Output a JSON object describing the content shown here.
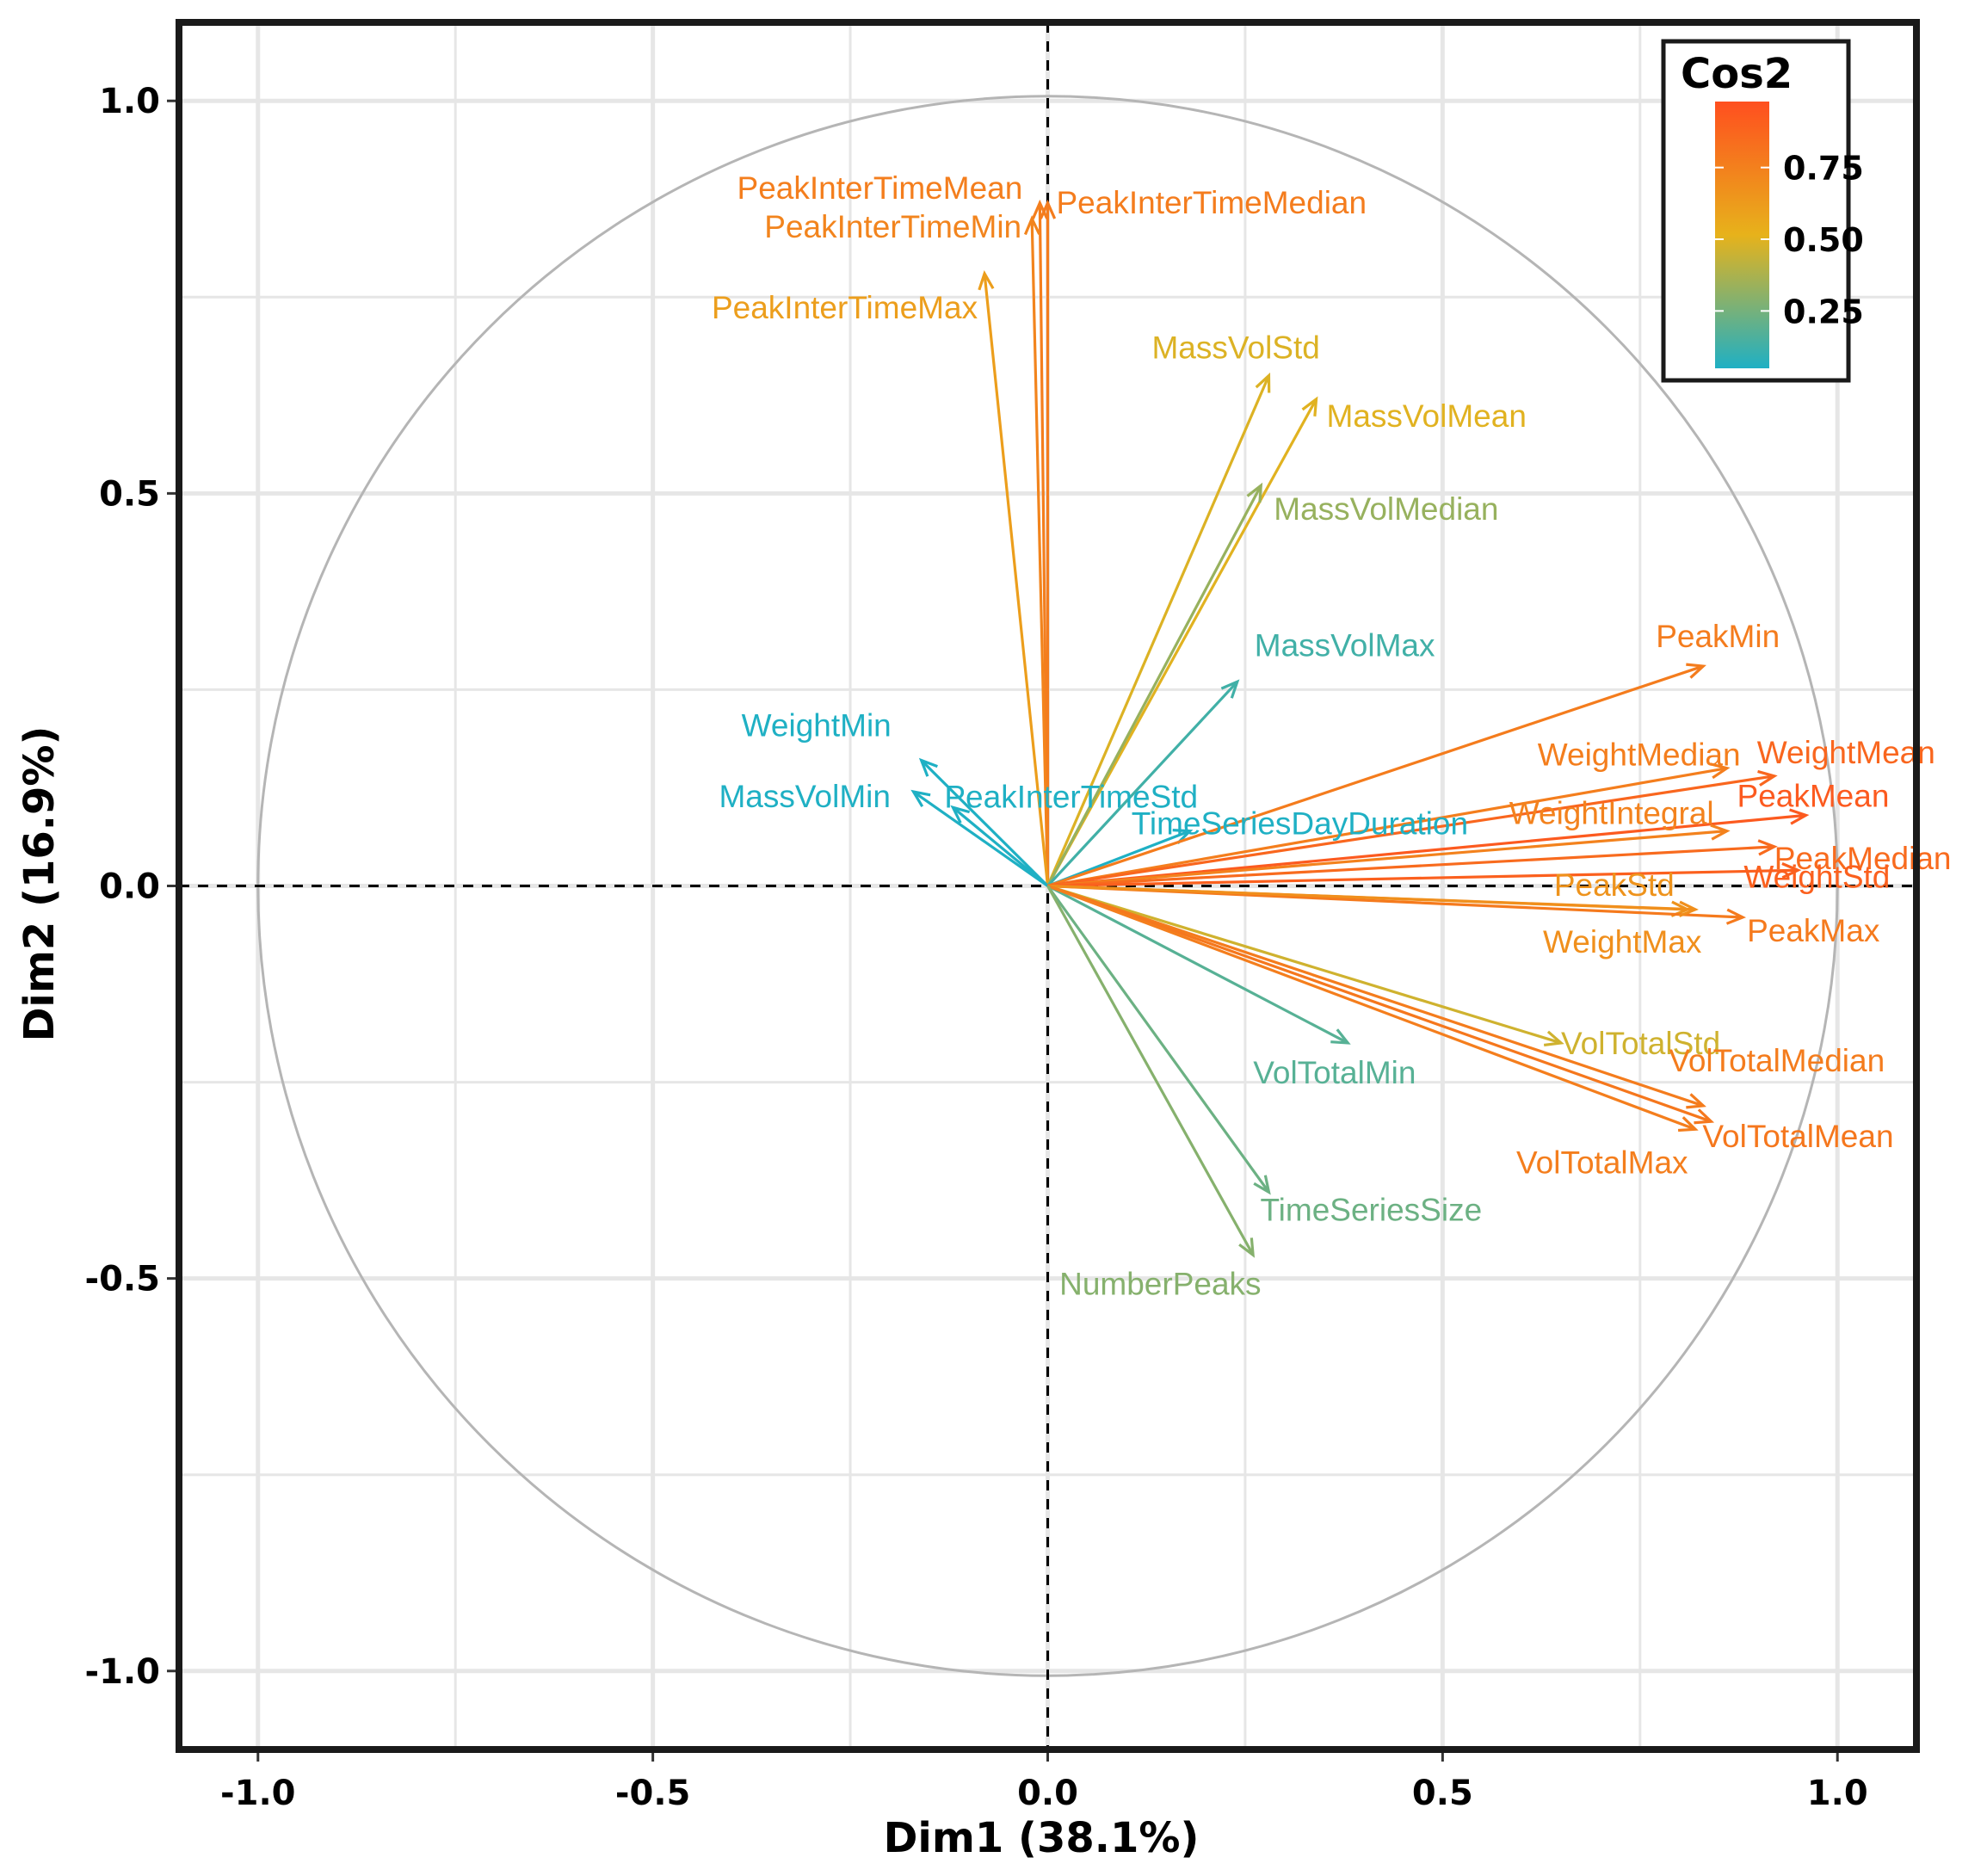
{
  "chart_data": {
    "type": "scatter",
    "subtype": "pca-variable-correlation-circle",
    "title": "",
    "xlabel": "Dim1 (38.1%)",
    "ylabel": "Dim2 (16.9%)",
    "xlim": [
      -1.1,
      1.1
    ],
    "ylim": [
      -1.1,
      1.1
    ],
    "xticks": [
      "-1.0",
      "-0.5",
      "0.0",
      "0.5",
      "1.0"
    ],
    "yticks": [
      "-1.0",
      "-0.5",
      "0.0",
      "0.5",
      "1.0"
    ],
    "xtick_values": [
      -1.0,
      -0.5,
      0.0,
      0.5,
      1.0
    ],
    "ytick_values": [
      -1.0,
      -0.5,
      0.0,
      0.5,
      1.0
    ],
    "grid": true,
    "legend": {
      "title": "Cos2",
      "position": "top-right",
      "ticks": [
        "0.75",
        "0.50",
        "0.25"
      ],
      "tick_values": [
        0.75,
        0.5,
        0.25
      ],
      "range": [
        0.05,
        0.98
      ],
      "colors": {
        "low": "#1fb0c4",
        "mid": "#e7b21b",
        "high": "#ff4f1f"
      }
    },
    "variables": [
      {
        "name": "PeakInterTimeMean",
        "x": -0.01,
        "y": 0.87,
        "cos2": 0.76,
        "label": "PeakInterTimeMean"
      },
      {
        "name": "PeakInterTimeMedian",
        "x": 0.0,
        "y": 0.87,
        "cos2": 0.77,
        "label": "PeakInterTimeMedian"
      },
      {
        "name": "PeakInterTimeMin",
        "x": -0.02,
        "y": 0.85,
        "cos2": 0.73,
        "label": "PeakInterTimeMin"
      },
      {
        "name": "PeakInterTimeMax",
        "x": -0.08,
        "y": 0.78,
        "cos2": 0.61,
        "label": "PeakInterTimeMax"
      },
      {
        "name": "MassVolStd",
        "x": 0.28,
        "y": 0.65,
        "cos2": 0.49,
        "label": "MassVolStd"
      },
      {
        "name": "MassVolMean",
        "x": 0.34,
        "y": 0.62,
        "cos2": 0.5,
        "label": "MassVolMean"
      },
      {
        "name": "MassVolMedian",
        "x": 0.27,
        "y": 0.51,
        "cos2": 0.33,
        "label": "MassVolMedian"
      },
      {
        "name": "MassVolMax",
        "x": 0.24,
        "y": 0.26,
        "cos2": 0.13,
        "label": "MassVolMax"
      },
      {
        "name": "WeightMin",
        "x": -0.16,
        "y": 0.16,
        "cos2": 0.05,
        "label": "WeightMin"
      },
      {
        "name": "MassVolMin",
        "x": -0.17,
        "y": 0.12,
        "cos2": 0.04,
        "label": "MassVolMin"
      },
      {
        "name": "PeakInterTimeStd",
        "x": -0.12,
        "y": 0.1,
        "cos2": 0.03,
        "label": "PeakInterTimeStd"
      },
      {
        "name": "TimeSeriesDayDuration",
        "x": 0.18,
        "y": 0.07,
        "cos2": 0.04,
        "label": "TimeSeriesDayDuration"
      },
      {
        "name": "PeakMin",
        "x": 0.83,
        "y": 0.28,
        "cos2": 0.77,
        "label": "PeakMin"
      },
      {
        "name": "WeightMedian",
        "x": 0.86,
        "y": 0.15,
        "cos2": 0.76,
        "label": "WeightMedian"
      },
      {
        "name": "WeightMean",
        "x": 0.92,
        "y": 0.14,
        "cos2": 0.87,
        "label": "WeightMean"
      },
      {
        "name": "PeakMean",
        "x": 0.96,
        "y": 0.09,
        "cos2": 0.93,
        "label": "PeakMean"
      },
      {
        "name": "WeightIntegral",
        "x": 0.86,
        "y": 0.07,
        "cos2": 0.74,
        "label": "WeightIntegral"
      },
      {
        "name": "PeakMedian",
        "x": 0.92,
        "y": 0.05,
        "cos2": 0.85,
        "label": "PeakMedian"
      },
      {
        "name": "WeightStd",
        "x": 0.95,
        "y": 0.02,
        "cos2": 0.9,
        "label": "WeightStd"
      },
      {
        "name": "PeakStd",
        "x": 0.81,
        "y": -0.03,
        "cos2": 0.66,
        "label": "PeakStd"
      },
      {
        "name": "PeakMax",
        "x": 0.88,
        "y": -0.04,
        "cos2": 0.78,
        "label": "PeakMax"
      },
      {
        "name": "WeightMax",
        "x": 0.82,
        "y": -0.03,
        "cos2": 0.68,
        "label": "WeightMax"
      },
      {
        "name": "VolTotalStd",
        "x": 0.65,
        "y": -0.2,
        "cos2": 0.46,
        "label": "VolTotalStd"
      },
      {
        "name": "VolTotalMin",
        "x": 0.38,
        "y": -0.2,
        "cos2": 0.18,
        "label": "VolTotalMin"
      },
      {
        "name": "VolTotalMedian",
        "x": 0.83,
        "y": -0.28,
        "cos2": 0.77,
        "label": "VolTotalMedian"
      },
      {
        "name": "VolTotalMean",
        "x": 0.84,
        "y": -0.3,
        "cos2": 0.79,
        "label": "VolTotalMean"
      },
      {
        "name": "VolTotalMax",
        "x": 0.82,
        "y": -0.31,
        "cos2": 0.76,
        "label": "VolTotalMax"
      },
      {
        "name": "TimeSeriesSize",
        "x": 0.28,
        "y": -0.39,
        "cos2": 0.23,
        "label": "TimeSeriesSize"
      },
      {
        "name": "NumberPeaks",
        "x": 0.26,
        "y": -0.47,
        "cos2": 0.29,
        "label": "NumberPeaks"
      }
    ]
  }
}
